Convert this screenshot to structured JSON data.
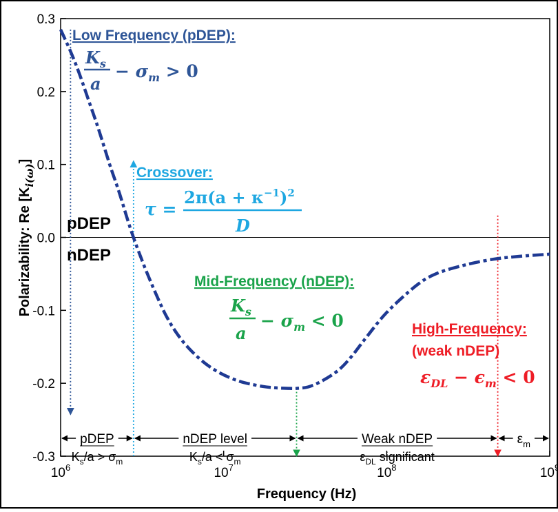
{
  "chart_data": {
    "type": "line",
    "xscale": "log",
    "xlim": [
      1000000,
      1000000000
    ],
    "ylim": [
      -0.3,
      0.3
    ],
    "xlabel": "Frequency (Hz)",
    "ylabel": "Polarizability: Re [K",
    "ylabel_sub": "i(ω)",
    "ylabel_end": "]",
    "x_ticks": [
      {
        "value": 1000000,
        "label": "10",
        "sup": "6"
      },
      {
        "value": 10000000,
        "label": "10",
        "sup": "7"
      },
      {
        "value": 100000000,
        "label": "10",
        "sup": "8"
      },
      {
        "value": 1000000000,
        "label": "10",
        "sup": "9"
      }
    ],
    "y_ticks": [
      {
        "value": -0.3,
        "label": "-0.3"
      },
      {
        "value": -0.2,
        "label": "-0.2"
      },
      {
        "value": -0.1,
        "label": "-0.1"
      },
      {
        "value": 0.0,
        "label": "0.0"
      },
      {
        "value": 0.1,
        "label": "0.1"
      },
      {
        "value": 0.2,
        "label": "0.2"
      },
      {
        "value": 0.3,
        "label": "0.3"
      }
    ],
    "grid": false,
    "series": [
      {
        "color": "#1f3a93",
        "style": "dash-dot",
        "x": [
          1000000,
          1150000,
          1300000,
          1500000,
          1700000,
          2000000,
          2300000,
          2700000,
          3200000,
          3800000,
          4500000,
          5500000,
          7000000,
          9000000,
          12000000,
          16000000,
          20000000,
          25000000,
          28000000,
          33000000,
          40000000,
          50000000,
          60000000,
          75000000,
          100000000,
          150000000,
          200000000,
          300000000,
          450000000,
          650000000,
          1000000000
        ],
        "y": [
          0.285,
          0.255,
          0.225,
          0.185,
          0.15,
          0.1,
          0.06,
          0.01,
          -0.035,
          -0.075,
          -0.11,
          -0.14,
          -0.165,
          -0.183,
          -0.196,
          -0.203,
          -0.206,
          -0.207,
          -0.207,
          -0.205,
          -0.197,
          -0.183,
          -0.165,
          -0.137,
          -0.103,
          -0.067,
          -0.05,
          -0.038,
          -0.03,
          -0.026,
          -0.023
        ]
      }
    ],
    "regions": [
      {
        "label": "pDEP",
        "condition_text": "K",
        "condition_sub": "s",
        "condition_rest": "/a > σ",
        "condition_sub2": "m",
        "x_start": 1000000,
        "x_end": 2800000
      },
      {
        "label": "nDEP level",
        "condition_text": "K",
        "condition_sub": "s",
        "condition_rest": "/a < σ",
        "condition_sub2": "m",
        "x_start": 2800000,
        "x_end": 28000000
      },
      {
        "label": "Weak nDEP",
        "condition_text": "ε",
        "condition_sub": "DL",
        "condition_rest": " significant",
        "condition_sub2": "",
        "x_start": 28000000,
        "x_end": 480000000
      },
      {
        "label": "ε",
        "label_sub": "m",
        "x_start": 480000000,
        "x_end": 1000000000
      }
    ],
    "markers": [
      {
        "name": "low",
        "x": 1150000,
        "y_from": 0.285,
        "y_to": -0.243,
        "color": "#2e5597"
      },
      {
        "name": "crossover",
        "x": 2800000,
        "y_from": -0.3,
        "y_to": 0.105,
        "color": "#1ea7e1"
      },
      {
        "name": "mid",
        "x": 28000000,
        "y_from": -0.207,
        "y_to": -0.3,
        "color": "#1aa34a"
      },
      {
        "name": "high",
        "x": 480000000,
        "y_from": 0.03,
        "y_to": -0.3,
        "color": "#ee1c25"
      }
    ],
    "annotations": {
      "low_title": "Low Frequency (pDEP):",
      "low_num": "K",
      "low_num_sub": "s",
      "low_den": "a",
      "low_rest": "− σ",
      "low_rest_sub": "m",
      "low_ineq": " > 0",
      "crossover_title": "Crossover:",
      "crossover_tau": "τ =",
      "crossover_num": "2π(a + κ",
      "crossover_num_sup": "−1",
      "crossover_num_end": ")",
      "crossover_num_sq": "2",
      "crossover_den": "D",
      "mid_title": "Mid-Frequency (nDEP):",
      "mid_num": "K",
      "mid_num_sub": "s",
      "mid_den": "a",
      "mid_rest": "− σ",
      "mid_rest_sub": "m",
      "mid_ineq": " < 0",
      "high_title": "High-Frequency:",
      "high_sub": "(weak nDEP)",
      "high_eq": "ε",
      "high_eq_sub": "DL",
      "high_eq_rest": " − ϵ",
      "high_eq_sub2": "m",
      "high_ineq": " < 0",
      "pdep_label": "pDEP",
      "ndep_label": "nDEP"
    },
    "colors": {
      "curve": "#1f3a93",
      "low": "#2e5597",
      "crossover": "#1ea7e1",
      "mid": "#1aa34a",
      "high": "#ee1c25"
    }
  }
}
